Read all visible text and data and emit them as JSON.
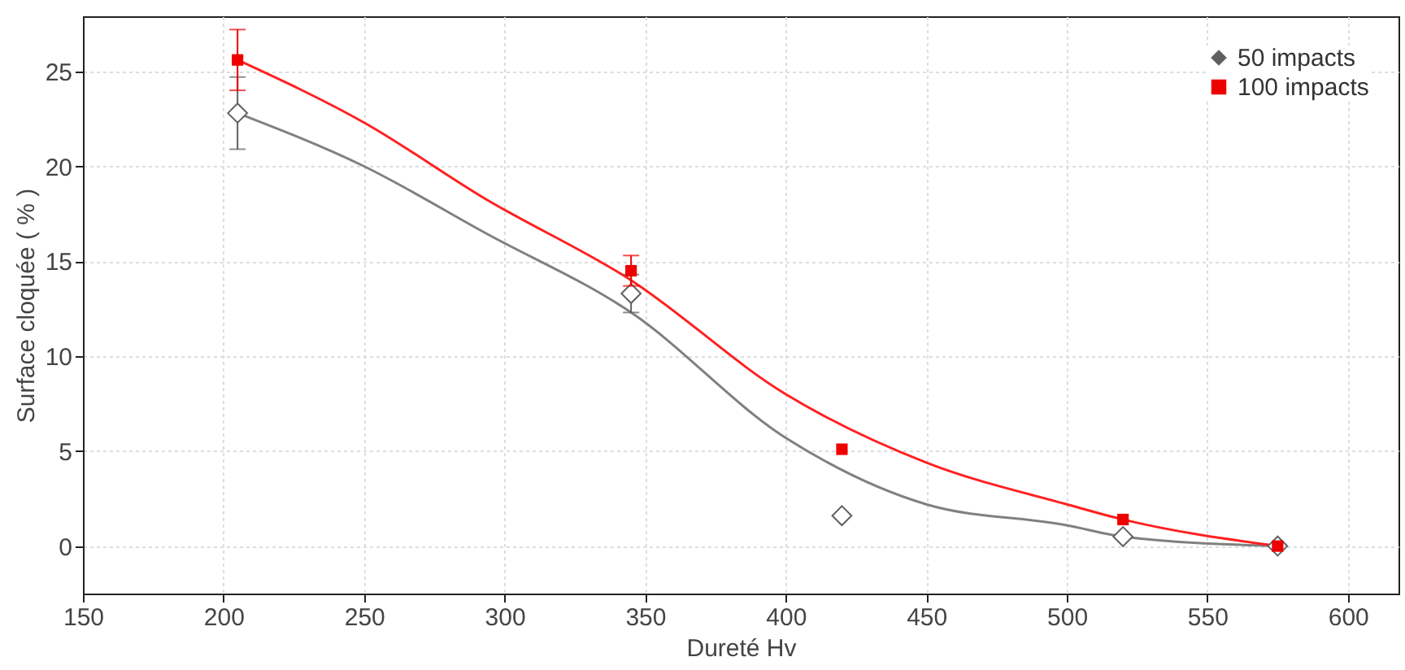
{
  "chart_data": {
    "type": "scatter",
    "xlabel": "Dureté Hv",
    "ylabel": "Surface cloquée  ( % )",
    "xlim": [
      150,
      618
    ],
    "ylim": [
      -2.5,
      27.9
    ],
    "xticks": [
      150,
      200,
      250,
      300,
      350,
      400,
      450,
      500,
      550,
      600
    ],
    "yticks": [
      0,
      5,
      10,
      15,
      20,
      25
    ],
    "grid": true,
    "legend": "top right",
    "series": [
      {
        "type": "line",
        "color": "#808080",
        "x": [
          205,
          250,
          293,
          345,
          400,
          450,
          500,
          520,
          575
        ],
        "values": [
          22.8,
          20,
          16.5,
          12.3,
          5.7,
          2.2,
          1.1,
          0.5,
          0
        ]
      },
      {
        "type": "line",
        "color": "#ff2020",
        "x": [
          205,
          250,
          293,
          345,
          400,
          450,
          500,
          520,
          575
        ],
        "values": [
          25.6,
          22.3,
          18.3,
          14,
          8,
          4.4,
          2.2,
          1.4,
          0
        ]
      },
      {
        "name": "50 impacts",
        "marker": "diamond",
        "color": "#606060",
        "x": [
          205,
          345,
          420,
          520,
          575
        ],
        "values": [
          22.8,
          13.3,
          1.6,
          0.5,
          0
        ],
        "errors": [
          1.9,
          1.0,
          null,
          null,
          null
        ]
      },
      {
        "name": "100 impacts",
        "marker": "square",
        "color": "#ee0000",
        "x": [
          205,
          345,
          420,
          520,
          575
        ],
        "values": [
          25.6,
          14.5,
          5.1,
          1.4,
          0
        ],
        "errors": [
          1.6,
          0.8,
          null,
          null,
          null
        ]
      }
    ]
  }
}
